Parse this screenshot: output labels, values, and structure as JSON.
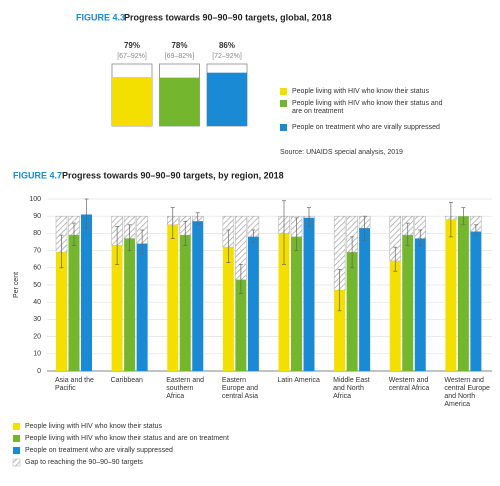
{
  "chart_data": [
    {
      "type": "bar",
      "label": "FIGURE 4.3",
      "title": "Progress towards 90–90–90 targets, global, 2018",
      "values": [
        79,
        78,
        86
      ],
      "value_labels": [
        "79%",
        "78%",
        "86%"
      ],
      "range_labels": [
        "[67–92%]",
        "[69–82%]",
        "[72–92%]"
      ],
      "colors": [
        "#f3e000",
        "#74b72e",
        "#1a8ad4"
      ],
      "ylim": [
        0,
        100
      ],
      "legend": [
        "People living with HIV who know their status",
        "People living with HIV who know their status and are on treatment",
        "People on treatment who are virally suppressed"
      ],
      "source": "Source: UNAIDS special analysis, 2019"
    },
    {
      "type": "grouped-bar",
      "label": "FIGURE 4.7",
      "title": "Progress towards 90–90–90 targets, by region, 2018",
      "ylabel": "Per cent",
      "ylim": [
        0,
        100
      ],
      "yticks": [
        0,
        10,
        20,
        30,
        40,
        50,
        60,
        70,
        80,
        90,
        100
      ],
      "grid": true,
      "target": 90,
      "gap_label": "Gap to reaching the 90–90–90 targets",
      "categories": [
        "Asia and the Pacific",
        "Caribbean",
        "Eastern and southern Africa",
        "Eastern Europe and central Asia",
        "Latin America",
        "Middle East and North Africa",
        "Western and central Africa",
        "Western and central Europe and North America"
      ],
      "series": [
        {
          "name": "People living with HIV who know their status",
          "color": "#f3e000",
          "values": [
            69,
            73,
            85,
            72,
            80,
            47,
            64,
            88
          ],
          "low": [
            60,
            62,
            77,
            63,
            62,
            35,
            58,
            78
          ],
          "high": [
            79,
            84,
            95,
            82,
            99,
            59,
            72,
            98
          ]
        },
        {
          "name": "People living with HIV who know their status and are on treatment",
          "color": "#74b72e",
          "values": [
            79,
            77,
            79,
            53,
            78,
            69,
            79,
            90
          ],
          "low": [
            73,
            70,
            73,
            45,
            70,
            60,
            73,
            85
          ],
          "high": [
            86,
            85,
            87,
            62,
            89,
            78,
            86,
            95
          ]
        },
        {
          "name": "People on treatment who are virally suppressed",
          "color": "#1a8ad4",
          "values": [
            91,
            74,
            87,
            78,
            89,
            83,
            77,
            81
          ],
          "low": [
            83,
            68,
            85,
            75,
            84,
            76,
            73,
            79
          ],
          "high": [
            100,
            82,
            92,
            82,
            95,
            90,
            82,
            85
          ]
        }
      ]
    }
  ]
}
